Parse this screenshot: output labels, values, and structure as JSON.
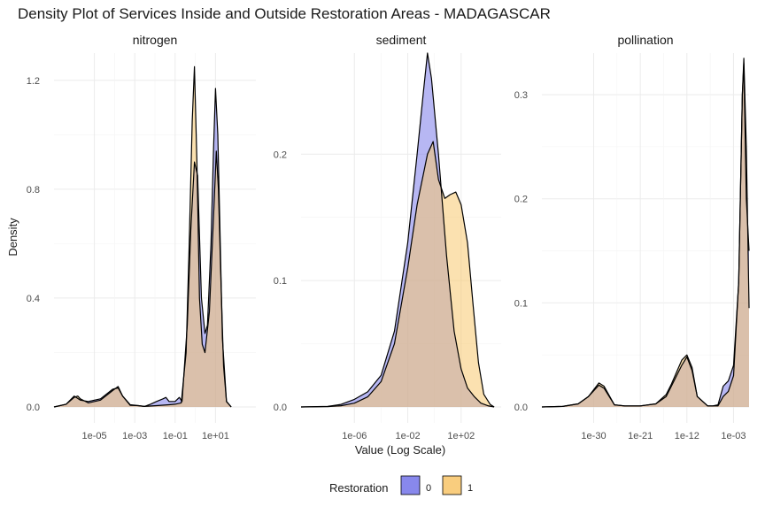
{
  "chart_data": {
    "type": "area",
    "title": "Density Plot of Services Inside and Outside Restoration Areas - MADAGASCAR",
    "xlabel": "Value (Log Scale)",
    "ylabel": "Density",
    "x_scale": "log10",
    "legend": {
      "title": "Restoration",
      "position": "bottom",
      "entries": [
        {
          "key": "0",
          "label": "0",
          "color": "#7b7bea"
        },
        {
          "key": "1",
          "label": "1",
          "color": "#f8c870"
        }
      ]
    },
    "colors": {
      "series0_fill": "#7b7bea",
      "series1_fill": "#f8c870",
      "overlap": "#b58f86",
      "outline": "#000000",
      "grid": "#ebebeb"
    },
    "grid": true,
    "panels": [
      {
        "name": "nitrogen",
        "xlim": [
          1e-07,
          1000
        ],
        "ylim": [
          0,
          1.3
        ],
        "x_ticks": [
          1e-05,
          0.001,
          0.1,
          10
        ],
        "x_tick_labels": [
          "1e-05",
          "1e-03",
          "1e-01",
          "1e+01"
        ],
        "y_ticks": [
          0,
          0.4,
          0.8,
          1.2
        ],
        "y_tick_labels": [
          "0.0",
          "0.4",
          "0.8",
          "1.2"
        ],
        "series": [
          {
            "key": "0",
            "points": [
              [
                1e-07,
                0
              ],
              [
                4e-07,
                0.01
              ],
              [
                1e-06,
                0.04
              ],
              [
                2e-06,
                0.025
              ],
              [
                5e-06,
                0.02
              ],
              [
                2e-05,
                0.03
              ],
              [
                8e-05,
                0.065
              ],
              [
                0.00015,
                0.07
              ],
              [
                0.00025,
                0.04
              ],
              [
                0.0006,
                0.008
              ],
              [
                0.0015,
                0.005
              ],
              [
                0.003,
                0.002
              ],
              [
                0.006,
                0.01
              ],
              [
                0.012,
                0.02
              ],
              [
                0.025,
                0.03
              ],
              [
                0.035,
                0.035
              ],
              [
                0.05,
                0.02
              ],
              [
                0.1,
                0.02
              ],
              [
                0.16,
                0.035
              ],
              [
                0.22,
                0.02
              ],
              [
                0.4,
                0.3
              ],
              [
                0.6,
                0.65
              ],
              [
                0.9,
                0.9
              ],
              [
                1.3,
                0.85
              ],
              [
                2,
                0.4
              ],
              [
                3,
                0.27
              ],
              [
                4,
                0.3
              ],
              [
                6,
                0.6
              ],
              [
                8,
                0.95
              ],
              [
                10,
                1.17
              ],
              [
                13,
                1.0
              ],
              [
                16,
                0.7
              ],
              [
                22,
                0.25
              ],
              [
                35,
                0.02
              ],
              [
                60,
                0
              ]
            ]
          },
          {
            "key": "1",
            "points": [
              [
                1e-07,
                0
              ],
              [
                4e-07,
                0.01
              ],
              [
                1e-06,
                0.035
              ],
              [
                1.5e-06,
                0.04
              ],
              [
                2e-06,
                0.03
              ],
              [
                5e-06,
                0.015
              ],
              [
                2e-05,
                0.025
              ],
              [
                8e-05,
                0.06
              ],
              [
                0.00015,
                0.075
              ],
              [
                0.00025,
                0.04
              ],
              [
                0.0006,
                0.006
              ],
              [
                0.0015,
                0.005
              ],
              [
                0.003,
                0.002
              ],
              [
                0.012,
                0.005
              ],
              [
                0.05,
                0.008
              ],
              [
                0.1,
                0.01
              ],
              [
                0.2,
                0.015
              ],
              [
                0.35,
                0.2
              ],
              [
                0.5,
                0.6
              ],
              [
                0.7,
                1.05
              ],
              [
                0.9,
                1.25
              ],
              [
                1.2,
                0.9
              ],
              [
                1.6,
                0.4
              ],
              [
                2.2,
                0.23
              ],
              [
                3,
                0.2
              ],
              [
                5,
                0.35
              ],
              [
                8,
                0.7
              ],
              [
                11,
                0.94
              ],
              [
                14,
                0.8
              ],
              [
                18,
                0.5
              ],
              [
                25,
                0.15
              ],
              [
                35,
                0.02
              ],
              [
                60,
                0
              ]
            ]
          }
        ]
      },
      {
        "name": "sediment",
        "xlim": [
          1e-10,
          100000.0
        ],
        "ylim": [
          0,
          0.28
        ],
        "x_ticks": [
          1e-06,
          0.01,
          100
        ],
        "x_tick_labels": [
          "1e-06",
          "1e-02",
          "1e+02"
        ],
        "y_ticks": [
          0,
          0.1,
          0.2
        ],
        "y_tick_labels": [
          "0.0",
          "0.1",
          "0.2"
        ],
        "series": [
          {
            "key": "0",
            "points": [
              [
                1e-10,
                0
              ],
              [
                1e-08,
                0.0005
              ],
              [
                1e-07,
                0.002
              ],
              [
                1e-06,
                0.006
              ],
              [
                1e-05,
                0.012
              ],
              [
                0.0001,
                0.025
              ],
              [
                0.001,
                0.06
              ],
              [
                0.01,
                0.13
              ],
              [
                0.05,
                0.2
              ],
              [
                0.15,
                0.25
              ],
              [
                0.3,
                0.28
              ],
              [
                0.6,
                0.26
              ],
              [
                2,
                0.2
              ],
              [
                8,
                0.12
              ],
              [
                30,
                0.06
              ],
              [
                100,
                0.03
              ],
              [
                300,
                0.015
              ],
              [
                1000,
                0.008
              ],
              [
                3000,
                0.003
              ],
              [
                10000,
                0.001
              ],
              [
                30000,
                0
              ]
            ]
          },
          {
            "key": "1",
            "points": [
              [
                1e-10,
                0
              ],
              [
                1e-08,
                0.0003
              ],
              [
                1e-07,
                0.001
              ],
              [
                1e-06,
                0.003
              ],
              [
                1e-05,
                0.008
              ],
              [
                0.0001,
                0.02
              ],
              [
                0.001,
                0.05
              ],
              [
                0.01,
                0.11
              ],
              [
                0.05,
                0.16
              ],
              [
                0.3,
                0.2
              ],
              [
                0.8,
                0.21
              ],
              [
                2,
                0.18
              ],
              [
                6,
                0.165
              ],
              [
                15,
                0.168
              ],
              [
                40,
                0.17
              ],
              [
                100,
                0.16
              ],
              [
                300,
                0.13
              ],
              [
                800,
                0.08
              ],
              [
                2000,
                0.035
              ],
              [
                5000,
                0.01
              ],
              [
                15000,
                0.002
              ],
              [
                30000,
                0
              ]
            ]
          }
        ]
      },
      {
        "name": "pollination",
        "xlim": [
          1e-40,
          1
        ],
        "ylim": [
          0,
          0.34
        ],
        "x_ticks": [
          1e-30,
          1e-21,
          1e-12,
          0.001
        ],
        "x_tick_labels": [
          "1e-30",
          "1e-21",
          "1e-12",
          "1e-03"
        ],
        "y_ticks": [
          0,
          0.1,
          0.2,
          0.3
        ],
        "y_tick_labels": [
          "0.0",
          "0.1",
          "0.2",
          "0.3"
        ],
        "series": [
          {
            "key": "0",
            "points": [
              [
                1e-40,
                0
              ],
              [
                1e-36,
                0.0005
              ],
              [
                1e-33,
                0.003
              ],
              [
                1e-31,
                0.01
              ],
              [
                1e-29,
                0.021
              ],
              [
                1e-28,
                0.018
              ],
              [
                1e-26,
                0.002
              ],
              [
                1e-24,
                0.001
              ],
              [
                1e-21,
                0.001
              ],
              [
                1e-18,
                0.003
              ],
              [
                1e-16,
                0.01
              ],
              [
                1e-15,
                0.02
              ],
              [
                1e-13,
                0.04
              ],
              [
                1e-12,
                0.048
              ],
              [
                1e-11,
                0.035
              ],
              [
                1e-10,
                0.01
              ],
              [
                1e-08,
                0.001
              ],
              [
                1e-07,
                0.001
              ],
              [
                1e-06,
                0.002
              ],
              [
                1e-05,
                0.02
              ],
              [
                0.0001,
                0.025
              ],
              [
                0.001,
                0.04
              ],
              [
                0.01,
                0.12
              ],
              [
                0.05,
                0.3
              ],
              [
                0.1,
                0.33
              ],
              [
                0.3,
                0.2
              ],
              [
                1,
                0.15
              ]
            ]
          },
          {
            "key": "1",
            "points": [
              [
                1e-40,
                0
              ],
              [
                1e-36,
                0.0005
              ],
              [
                1e-33,
                0.003
              ],
              [
                1e-31,
                0.01
              ],
              [
                1e-29,
                0.023
              ],
              [
                1e-28,
                0.02
              ],
              [
                1e-26,
                0.002
              ],
              [
                1e-24,
                0.001
              ],
              [
                1e-21,
                0.001
              ],
              [
                1e-18,
                0.003
              ],
              [
                1e-16,
                0.012
              ],
              [
                1e-15,
                0.022
              ],
              [
                1e-13,
                0.045
              ],
              [
                1e-12,
                0.05
              ],
              [
                1e-11,
                0.038
              ],
              [
                1e-10,
                0.01
              ],
              [
                1e-08,
                0.001
              ],
              [
                1e-06,
                0.001
              ],
              [
                1e-05,
                0.01
              ],
              [
                0.0001,
                0.015
              ],
              [
                0.001,
                0.03
              ],
              [
                0.01,
                0.12
              ],
              [
                0.05,
                0.3
              ],
              [
                0.1,
                0.335
              ],
              [
                0.3,
                0.25
              ],
              [
                1,
                0.095
              ]
            ]
          }
        ]
      }
    ]
  }
}
